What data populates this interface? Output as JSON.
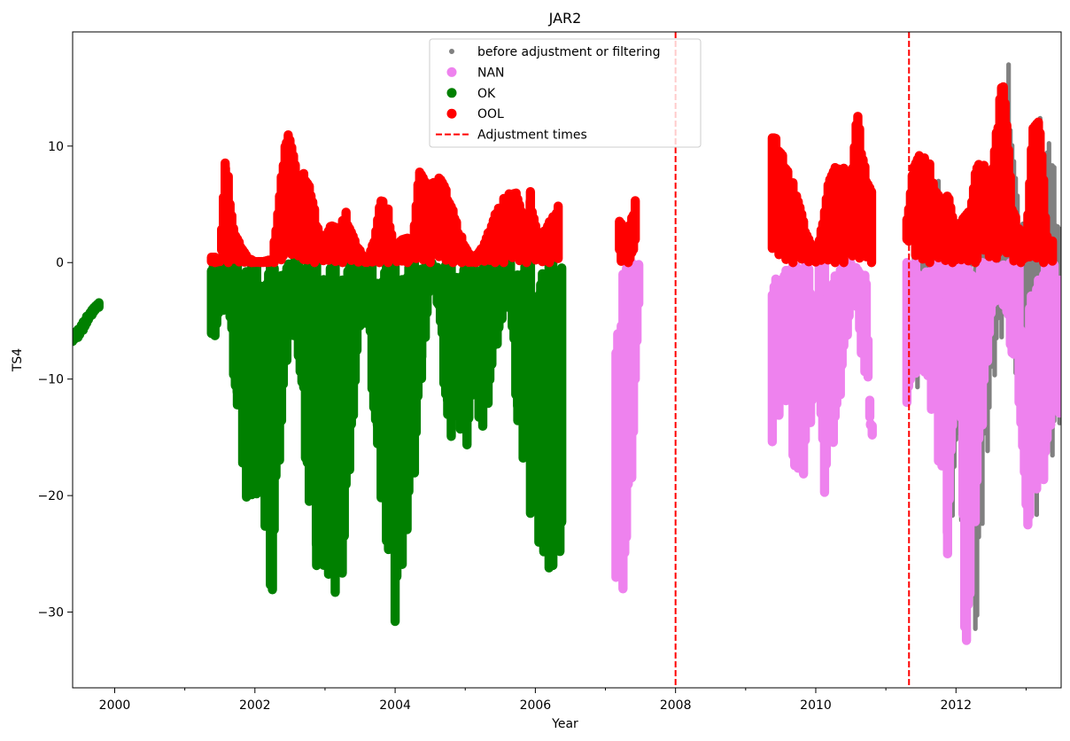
{
  "chart_data": {
    "type": "scatter",
    "title": "JAR2",
    "xlabel": "Year",
    "ylabel": "TS4",
    "xlim": [
      1999.4,
      2013.5
    ],
    "ylim": [
      -36.5,
      19.8
    ],
    "x_ticks": [
      2000,
      2002,
      2004,
      2006,
      2008,
      2010,
      2012
    ],
    "x_tick_labels": [
      "2000",
      "2002",
      "2004",
      "2006",
      "2008",
      "2010",
      "2012"
    ],
    "x_minor_ticks": [
      2001,
      2003,
      2005,
      2007,
      2009,
      2011,
      2013
    ],
    "y_ticks": [
      10,
      0,
      -10,
      -20,
      -30
    ],
    "y_tick_labels": [
      "10",
      "0",
      "−10",
      "−20",
      "−30"
    ],
    "grid": false,
    "legend_position": "top-center",
    "colors": {
      "before": "#808080",
      "nan": "#ee82ee",
      "ok": "#008000",
      "ool": "#ff0000",
      "adjust": "#ff0000"
    },
    "legend": [
      {
        "label": "before adjustment or filtering",
        "marker": "small-dot",
        "color": "#808080"
      },
      {
        "label": "NAN",
        "marker": "dot",
        "color": "#ee82ee"
      },
      {
        "label": "OK",
        "marker": "dot",
        "color": "#008000"
      },
      {
        "label": "OOL",
        "marker": "dot",
        "color": "#ff0000"
      },
      {
        "label": "Adjustment times",
        "marker": "dashed-line",
        "color": "#ff0000"
      }
    ],
    "adjustment_times": [
      2008.0,
      2011.33
    ],
    "series": [
      {
        "name": "OK",
        "color": "#008000",
        "segments": [
          {
            "x": [
              1999.4,
              1999.5,
              1999.6,
              1999.7,
              1999.8
            ],
            "y_min": [
              -6.8,
              -6.3,
              -5.3,
              -4.3,
              -3.7
            ],
            "y_max": [
              -6.2,
              -5.6,
              -4.6,
              -3.8,
              -3.3
            ]
          },
          {
            "x": [
              2001.38,
              2001.5,
              2001.62,
              2001.75,
              2001.88,
              2002.0,
              2002.12,
              2002.25,
              2002.38,
              2002.5,
              2002.62,
              2002.75,
              2002.88,
              2003.0,
              2003.12,
              2003.25,
              2003.38,
              2003.5,
              2003.62,
              2003.75,
              2003.88,
              2004.0,
              2004.12,
              2004.25,
              2004.38,
              2004.5,
              2004.62,
              2004.75,
              2004.88,
              2005.0,
              2005.12,
              2005.25,
              2005.38,
              2005.5,
              2005.62,
              2005.75,
              2005.88,
              2006.0,
              2006.12,
              2006.25,
              2006.38
            ],
            "y_min": [
              -7.2,
              -5.0,
              -3.5,
              -14.0,
              -21.5,
              -19.0,
              -23.0,
              -29.0,
              -15.0,
              -5.0,
              -8.0,
              -20.0,
              -26.0,
              -27.0,
              -28.5,
              -27.5,
              -15.0,
              -6.0,
              -5.0,
              -20.0,
              -24.0,
              -30.8,
              -26.0,
              -20.0,
              -10.0,
              -2.0,
              -4.0,
              -15.5,
              -14.0,
              -17.0,
              -13.0,
              -15.0,
              -10.0,
              -6.0,
              -2.0,
              -15.0,
              -19.0,
              -25.0,
              -26.5,
              -26.0,
              -25.5
            ],
            "y_max": [
              -0.2,
              0,
              0,
              0,
              0,
              0,
              0,
              0,
              0,
              0,
              0,
              0,
              0,
              0,
              0,
              0,
              0,
              0,
              0,
              0,
              0,
              0,
              0,
              0,
              0,
              0,
              0,
              0,
              0,
              0,
              0,
              0,
              0,
              0,
              0,
              0,
              0,
              0,
              0,
              0,
              0
            ]
          }
        ]
      },
      {
        "name": "OOL",
        "color": "#ff0000",
        "segments": [
          {
            "x": [
              2001.38,
              2001.5,
              2001.58,
              2001.62,
              2001.7,
              2001.8,
              2001.9,
              2002.0,
              2002.12,
              2002.25,
              2002.38,
              2002.45,
              2002.5,
              2002.58,
              2002.62,
              2002.7,
              2002.8,
              2002.9,
              2003.0,
              2003.1,
              2003.2,
              2003.3,
              2003.45,
              2003.6,
              2003.7,
              2003.8,
              2003.9,
              2004.0,
              2004.1,
              2004.25,
              2004.35,
              2004.45,
              2004.55,
              2004.65,
              2004.75,
              2004.85,
              2004.95,
              2005.1,
              2005.25,
              2005.35,
              2005.45,
              2005.55,
              2005.65,
              2005.75,
              2005.85,
              2005.93,
              2006.05,
              2006.15,
              2006.25,
              2006.35
            ],
            "y_max": [
              0.5,
              0.4,
              9.7,
              7.4,
              3.0,
              1.5,
              0.4,
              0.1,
              0.1,
              0.3,
              8.0,
              11.8,
              12.3,
              8.5,
              6.0,
              8.2,
              6.2,
              3.0,
              2.5,
              3.6,
              2.8,
              4.4,
              1.5,
              0.2,
              2.0,
              5.6,
              4.6,
              1.0,
              2.2,
              2.0,
              8.9,
              6.5,
              7.0,
              8.5,
              6.0,
              4.0,
              2.2,
              0.2,
              1.5,
              3.0,
              4.5,
              5.5,
              6.8,
              6.0,
              3.0,
              6.2,
              2.0,
              3.0,
              4.0,
              5.9
            ],
            "y_min": [
              0,
              0,
              0,
              0,
              0,
              0,
              0,
              0,
              0,
              0,
              0,
              0,
              0,
              0,
              0,
              0,
              0,
              0,
              0,
              0,
              0,
              0,
              0,
              0,
              0,
              0,
              0,
              0,
              0,
              0,
              0,
              0,
              0,
              0,
              0,
              0,
              0,
              0,
              0,
              0,
              0,
              0,
              0,
              0,
              0,
              0,
              0,
              0,
              0,
              0
            ]
          },
          {
            "x": [
              2007.2,
              2007.3,
              2007.4,
              2007.45
            ],
            "y_max": [
              3.9,
              2.5,
              5.0,
              7.4
            ],
            "y_min": [
              0,
              0,
              0,
              0
            ]
          },
          {
            "x": [
              2009.38,
              2009.45,
              2009.55,
              2009.65,
              2009.75,
              2009.85,
              2010.0,
              2010.1,
              2010.2,
              2010.3,
              2010.4,
              2010.5,
              2010.6,
              2010.65,
              2010.72,
              2010.8
            ],
            "y_max": [
              12.8,
              11.3,
              9.0,
              7.0,
              6.4,
              3.0,
              0.4,
              4.0,
              8.0,
              8.2,
              8.1,
              7.5,
              13.8,
              10.5,
              7.8,
              6.0
            ],
            "y_min": [
              0,
              0,
              0,
              0,
              0,
              0,
              0,
              0,
              0,
              0,
              0,
              0,
              0,
              0,
              0,
              0
            ]
          },
          {
            "x": [
              2011.3,
              2011.4,
              2011.5,
              2011.6,
              2011.7,
              2011.8,
              2011.9,
              2012.0,
              2012.1,
              2012.2,
              2012.3,
              2012.4,
              2012.5,
              2012.6,
              2012.65,
              2012.7,
              2012.8,
              2012.9,
              2013.0,
              2013.1,
              2013.2,
              2013.3,
              2013.4
            ],
            "y_max": [
              3.7,
              9.6,
              9.5,
              8.8,
              7.5,
              5.5,
              5.9,
              2.0,
              4.5,
              4.6,
              8.6,
              8.5,
              8.0,
              13.0,
              17.2,
              16.0,
              5.0,
              3.0,
              2.0,
              13.2,
              12.0,
              2.3,
              2.0
            ],
            "y_min": [
              2.0,
              0,
              0,
              0,
              0,
              0,
              0,
              0,
              0,
              0,
              0,
              0,
              0,
              0,
              0,
              0,
              0,
              0,
              0,
              0,
              0,
              0,
              0
            ]
          }
        ]
      },
      {
        "name": "NAN",
        "color": "#ee82ee",
        "segments": [
          {
            "x": [
              2007.15,
              2007.2,
              2007.25,
              2007.3,
              2007.35,
              2007.4,
              2007.45,
              2007.5
            ],
            "y_min": [
              -29.5,
              -29.0,
              -28.0,
              -27.0,
              -22.0,
              -15.0,
              -8.0,
              -1.5
            ],
            "y_max": [
              -3.5,
              -2.0,
              -1.0,
              0,
              0,
              0,
              0,
              0
            ]
          },
          {
            "x": [
              2009.38,
              2009.45,
              2009.5,
              2009.6,
              2009.7,
              2009.75,
              2009.8,
              2009.9,
              2010.0,
              2010.05,
              2010.1,
              2010.2,
              2010.3,
              2010.4,
              2010.5,
              2010.6,
              2010.65,
              2010.72,
              2010.78,
              2010.82
            ],
            "y_min": [
              -17.0,
              -15.0,
              -13.0,
              -12.0,
              -18.0,
              -21.0,
              -20.0,
              -15.0,
              -10.0,
              -13.0,
              -20.3,
              -18.0,
              -15.0,
              -8.5,
              -4.0,
              -4.0,
              -10.0,
              -10.0,
              -14.0,
              -16.0
            ],
            "y_max": [
              0,
              0,
              0,
              0,
              0,
              0,
              0,
              0,
              -10.5,
              0,
              0,
              0,
              0,
              0,
              0,
              0,
              0,
              0,
              -13.8,
              -13.8
            ]
          },
          {
            "x": [
              2011.3,
              2011.35,
              2011.4,
              2011.5,
              2011.6,
              2011.7,
              2011.8,
              2011.88,
              2011.95,
              2012.0,
              2012.05,
              2012.1,
              2012.15,
              2012.2,
              2012.25,
              2012.3,
              2012.4,
              2012.5,
              2012.6,
              2012.7,
              2012.8,
              2012.9,
              2013.0,
              2013.05,
              2013.1,
              2013.2,
              2013.3,
              2013.4,
              2013.48
            ],
            "y_min": [
              -12.0,
              -11.5,
              -10.0,
              -8.0,
              -12.0,
              -14.0,
              -20.0,
              -25.0,
              -18.0,
              -8.0,
              -5.0,
              -29.0,
              -33.5,
              -33.8,
              -26.0,
              -20.0,
              -12.0,
              -5.0,
              -3.0,
              -4.0,
              -8.0,
              -12.0,
              -23.0,
              -24.0,
              -21.0,
              -20.5,
              -18.0,
              -10.0,
              -14.0
            ],
            "y_max": [
              0,
              0,
              0,
              0,
              0,
              0,
              0,
              0,
              0,
              0,
              0,
              0,
              0,
              0,
              0,
              0,
              0,
              0,
              0,
              0,
              0,
              0,
              -16.0,
              0,
              0,
              0,
              0,
              0,
              0
            ]
          }
        ]
      },
      {
        "name": "before adjustment or filtering",
        "color": "#808080",
        "segments": [
          {
            "x": [
              2011.35,
              2011.5,
              2011.7,
              2011.85,
              2011.95,
              2012.15,
              2012.25,
              2012.35,
              2012.55,
              2012.7,
              2012.85,
              2013.0,
              2013.15,
              2013.3,
              2013.45
            ],
            "y_min": [
              -12.5,
              -9.0,
              -15.0,
              -25.5,
              -18.0,
              -33.5,
              -34.0,
              -20.0,
              -8.0,
              -5.0,
              -12.5,
              -24.0,
              -20.5,
              -18.0,
              -14.5
            ],
            "y_max": [
              9.0,
              8.0,
              7.0,
              5.5,
              4.0,
              4.0,
              5.0,
              8.0,
              9.0,
              17.0,
              4.0,
              2.0,
              13.0,
              11.0,
              4.0
            ]
          }
        ]
      }
    ]
  }
}
